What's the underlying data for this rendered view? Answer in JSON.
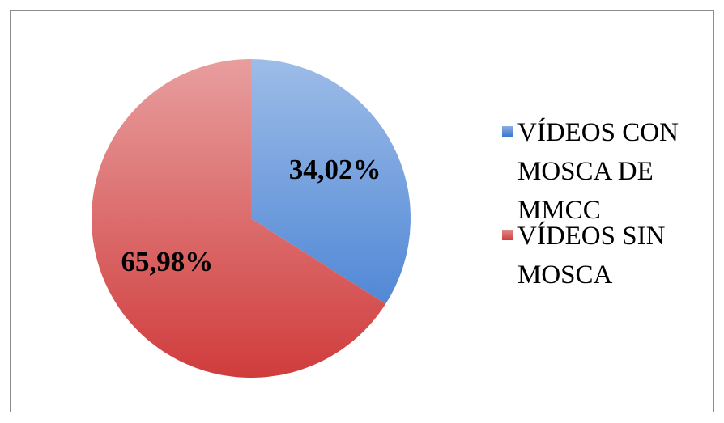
{
  "chart_data": {
    "type": "pie",
    "categories": [
      "VÍDEOS CON MOSCA DE MMCC",
      "VÍDEOS SIN MOSCA"
    ],
    "values": [
      34.02,
      65.98
    ],
    "value_labels": [
      "34,02%",
      "65,98%"
    ],
    "colors": [
      "#3a78d0",
      "#d03c3c"
    ]
  }
}
